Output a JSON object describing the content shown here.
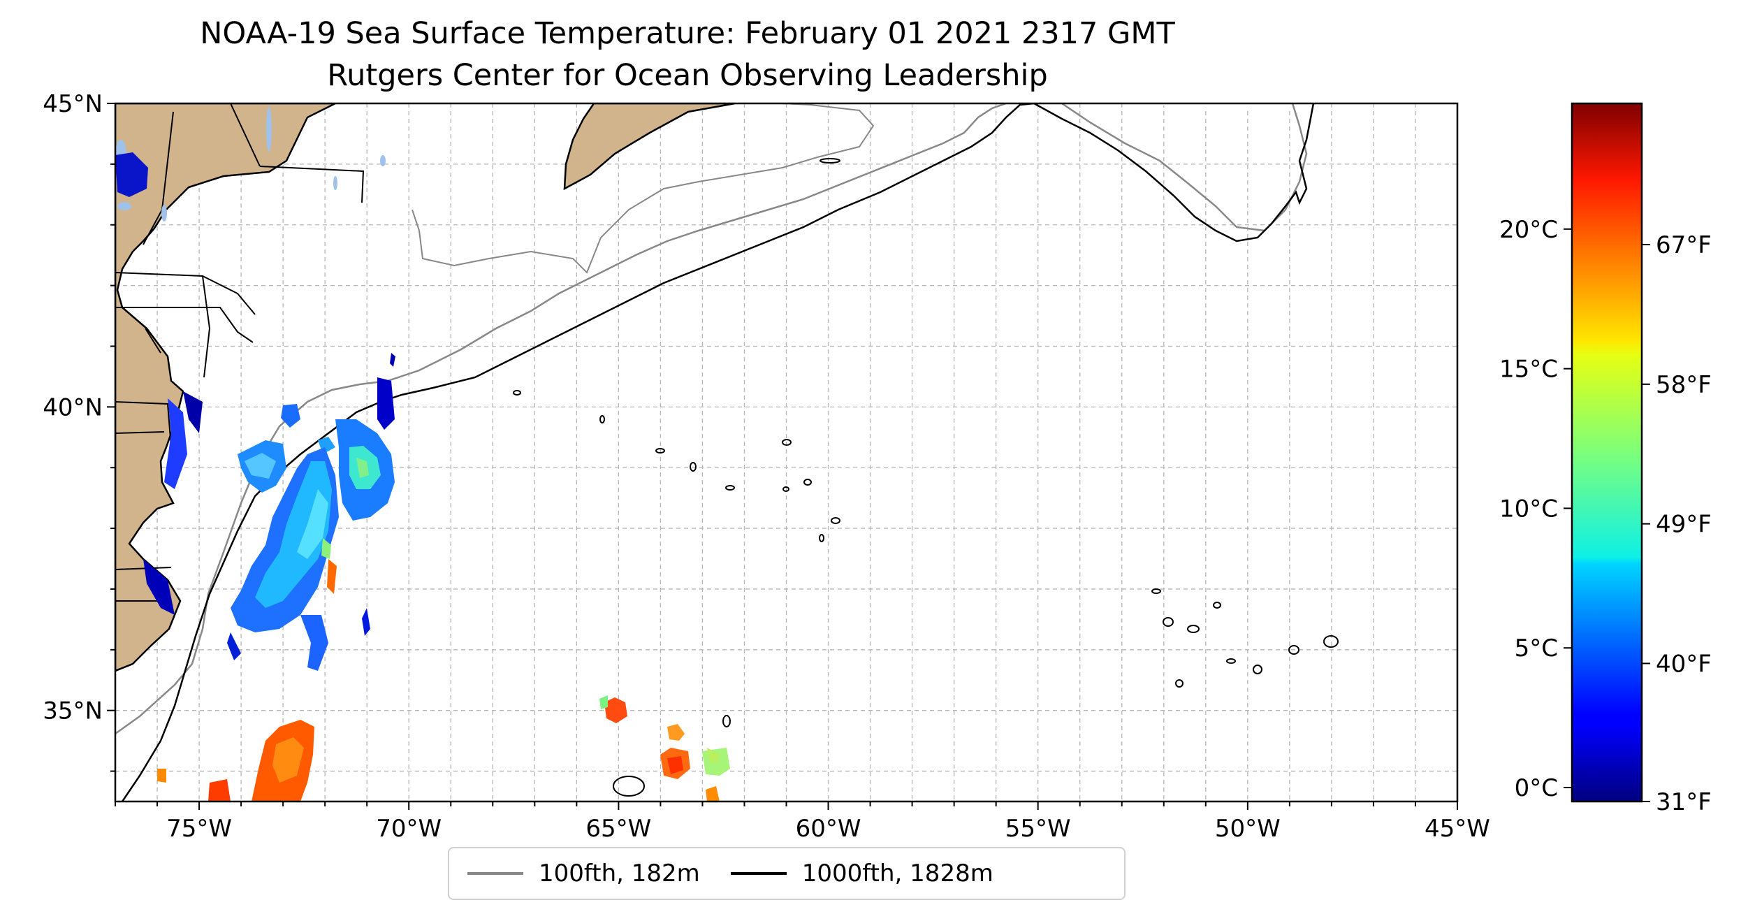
{
  "title": "NOAA-19 Sea Surface Temperature: February 01 2021 2317 GMT",
  "subtitle": "Rutgers Center for Ocean Observing Leadership",
  "map": {
    "lon_range": [
      -77,
      -45
    ],
    "lat_range": [
      33.5,
      45
    ],
    "x_ticks": [
      "75°W",
      "70°W",
      "65°W",
      "60°W",
      "55°W",
      "50°W",
      "45°W"
    ],
    "x_tick_values": [
      -75,
      -70,
      -65,
      -60,
      -55,
      -50,
      -45
    ],
    "y_ticks": [
      "45°N",
      "40°N",
      "35°N"
    ],
    "y_tick_values": [
      45,
      40,
      35
    ],
    "gridlines": true,
    "land_color": "#d2b48c",
    "lake_color": "#9fc1ea"
  },
  "colorbar": {
    "celsius_ticks": [
      "0°C",
      "5°C",
      "10°C",
      "15°C",
      "20°C"
    ],
    "celsius_values": [
      0,
      5,
      10,
      15,
      20
    ],
    "fahrenheit_ticks": [
      "31°F",
      "40°F",
      "49°F",
      "58°F",
      "67°F"
    ],
    "fahrenheit_values": [
      31,
      40,
      49,
      58,
      67
    ],
    "range_c": [
      -0.5,
      24.5
    ],
    "colormap": "jet"
  },
  "legend": {
    "items": [
      {
        "label": "100fth, 182m",
        "color": "#888888"
      },
      {
        "label": "1000fth, 1828m",
        "color": "#000000"
      }
    ]
  }
}
